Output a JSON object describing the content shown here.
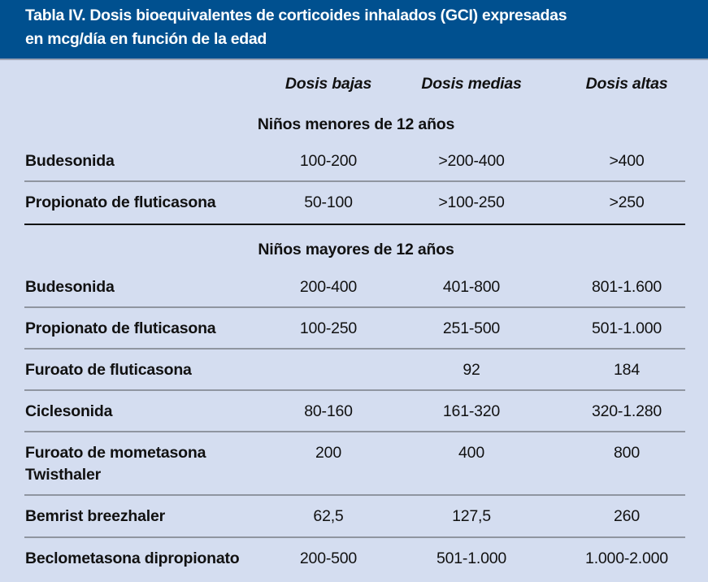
{
  "title": {
    "line1": "Tabla IV.  Dosis bioequivalentes de corticoides inhalados (GCI) expresadas",
    "line2": "en mcg/día en función de la edad"
  },
  "columns": [
    "Dosis bajas",
    "Dosis medias",
    "Dosis altas"
  ],
  "sections": [
    {
      "title": "Niños menores de 12 años",
      "rows": [
        {
          "name": "Budesonida",
          "values": [
            "100-200",
            ">200-400",
            ">400"
          ]
        },
        {
          "name": "Propionato de fluticasona",
          "values": [
            "50-100",
            ">100-250",
            ">250"
          ]
        }
      ]
    },
    {
      "title": "Niños mayores de 12 años",
      "rows": [
        {
          "name": "Budesonida",
          "values": [
            "200-400",
            "401-800",
            "801-1.600"
          ]
        },
        {
          "name": "Propionato de fluticasona",
          "values": [
            "100-250",
            "251-500",
            "501-1.000"
          ]
        },
        {
          "name": "Furoato de fluticasona",
          "values": [
            "",
            "92",
            "184"
          ]
        },
        {
          "name": "Ciclesonida",
          "values": [
            "80-160",
            "161-320",
            "320-1.280"
          ]
        },
        {
          "name": "Furoato de mometasona",
          "name2": "Twisthaler",
          "values": [
            "200",
            "400",
            "800"
          ]
        },
        {
          "name": "Bemrist breezhaler",
          "values": [
            "62,5",
            "127,5",
            "260"
          ]
        },
        {
          "name": "Beclometasona dipropionato",
          "values": [
            "200-500",
            "501-1.000",
            "1.000-2.000"
          ]
        }
      ]
    }
  ]
}
